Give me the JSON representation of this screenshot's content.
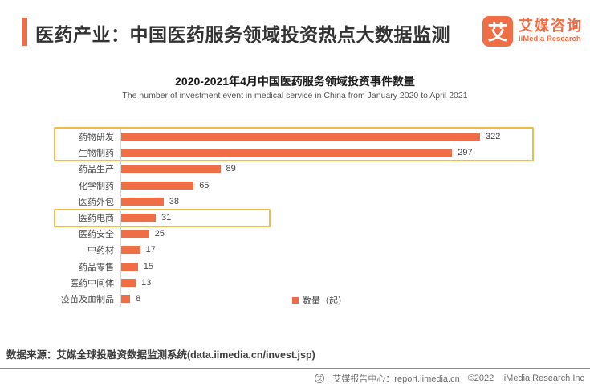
{
  "header": {
    "title": "医药产业：中国医药服务领域投资热点大数据监测"
  },
  "logo": {
    "mark": "艾",
    "name_cn": "艾媒咨询",
    "name_en": "iiMedia Research"
  },
  "chart": {
    "title": "2020-2021年4月中国医药服务领域投资事件数量",
    "subtitle": "The number of investment event in medical service in China from January 2020 to April 2021",
    "legend": "数量（起）"
  },
  "chart_data": {
    "type": "bar",
    "orientation": "horizontal",
    "title": "2020-2021年4月中国医药服务领域投资事件数量",
    "subtitle": "The number of investment event in medical service in China from January 2020 to April 2021",
    "categories": [
      "药物研发",
      "生物制药",
      "药品生产",
      "化学制药",
      "医药外包",
      "医药电商",
      "医药安全",
      "中药材",
      "药品零售",
      "医药中间体",
      "疫苗及血制品"
    ],
    "values": [
      322,
      297,
      89,
      65,
      38,
      31,
      25,
      17,
      15,
      13,
      8
    ],
    "series_name": "数量（起）",
    "xlim": [
      0,
      340
    ],
    "grid": false,
    "legend_position": "bottom-right",
    "bar_color": "#EF6E46",
    "highlight_box_color": "#F1BC45",
    "highlighted_groups": [
      [
        "药物研发",
        "生物制药"
      ],
      [
        "医药电商"
      ]
    ]
  },
  "footer": {
    "source": "数据来源：艾媒全球投融资数据监测系统(data.iimedia.cn/invest.jsp)",
    "badge_glyph": "艾",
    "center": "艾媒报告中心：report.iimedia.cn",
    "copyright": "©2022",
    "company": "iiMedia Research Inc"
  },
  "colors": {
    "accent": "#EF6E46",
    "highlight_border": "#F1BC45",
    "axis_line": "#d9d9d9",
    "title_text": "#1a1a1a",
    "body_text": "#4a4a4a",
    "footer_text": "#6b6b6b"
  }
}
